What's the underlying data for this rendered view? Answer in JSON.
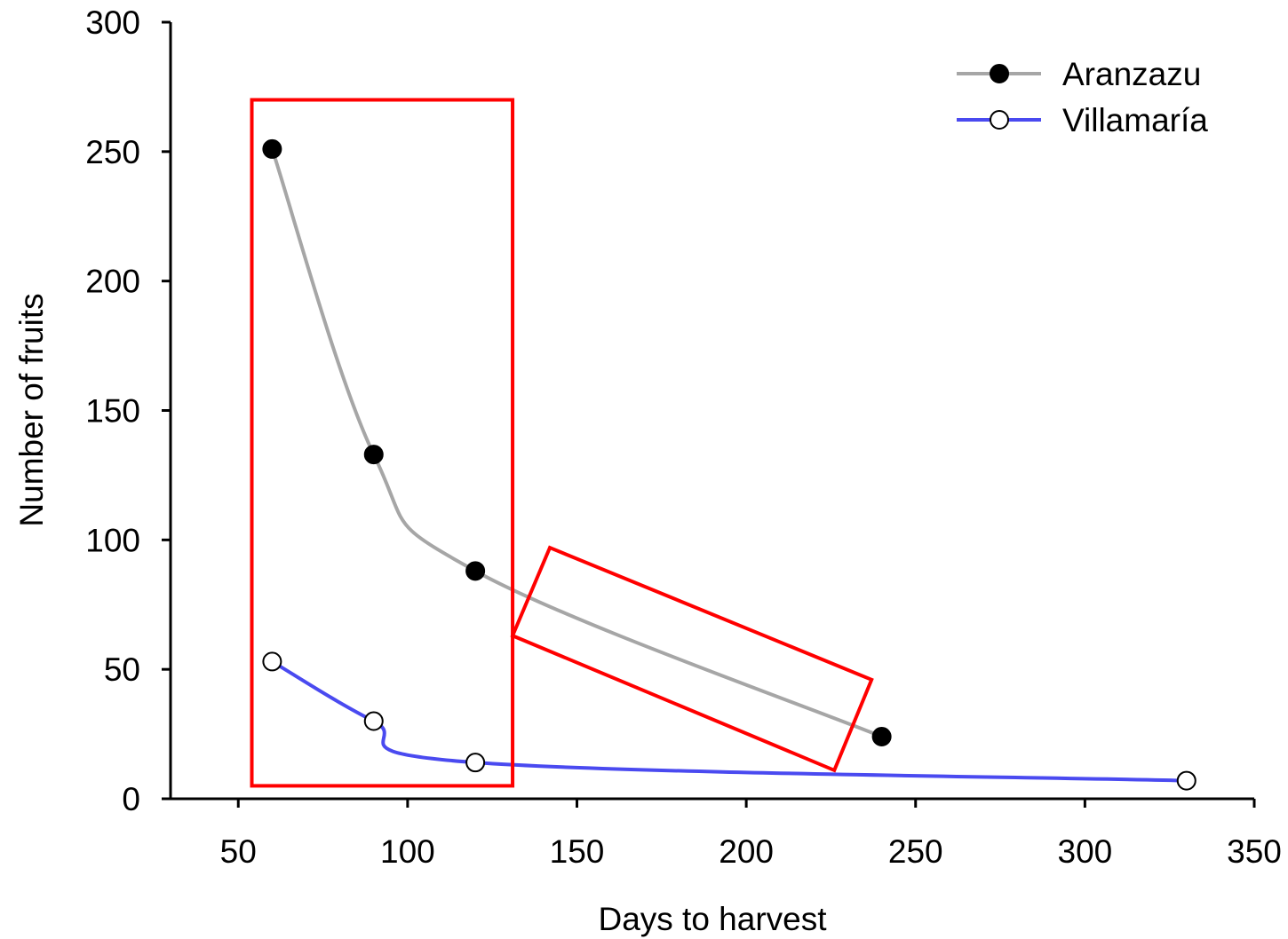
{
  "chart_data": {
    "type": "line",
    "title": "",
    "xlabel": "Days to harvest",
    "ylabel": "Number of fruits",
    "xlim": [
      30,
      350
    ],
    "ylim": [
      0,
      300
    ],
    "x_ticks": [
      50,
      100,
      150,
      200,
      250,
      300,
      350
    ],
    "y_ticks": [
      0,
      50,
      100,
      150,
      200,
      250,
      300
    ],
    "grid": false,
    "legend_position": "top-right",
    "series": [
      {
        "name": "Aranzazu",
        "x": [
          60,
          90,
          120,
          240
        ],
        "y": [
          251,
          133,
          88,
          24
        ],
        "line_color": "#a6a6a6",
        "marker": "filled-circle",
        "marker_color": "#000000"
      },
      {
        "name": "Villamaría",
        "x": [
          60,
          90,
          120,
          330
        ],
        "y": [
          53,
          30,
          14,
          7
        ],
        "line_color": "#4a4af0",
        "marker": "open-circle",
        "marker_color": "#ffffff"
      }
    ],
    "annotations": [
      {
        "shape": "rectangle",
        "color": "#ff0000",
        "x_range": [
          54,
          131
        ],
        "y_range": [
          5,
          270
        ]
      },
      {
        "shape": "rotated-rectangle",
        "color": "#ff0000",
        "corners": [
          [
            131,
            63
          ],
          [
            142,
            97
          ],
          [
            237,
            46
          ],
          [
            226,
            11
          ]
        ]
      }
    ]
  }
}
